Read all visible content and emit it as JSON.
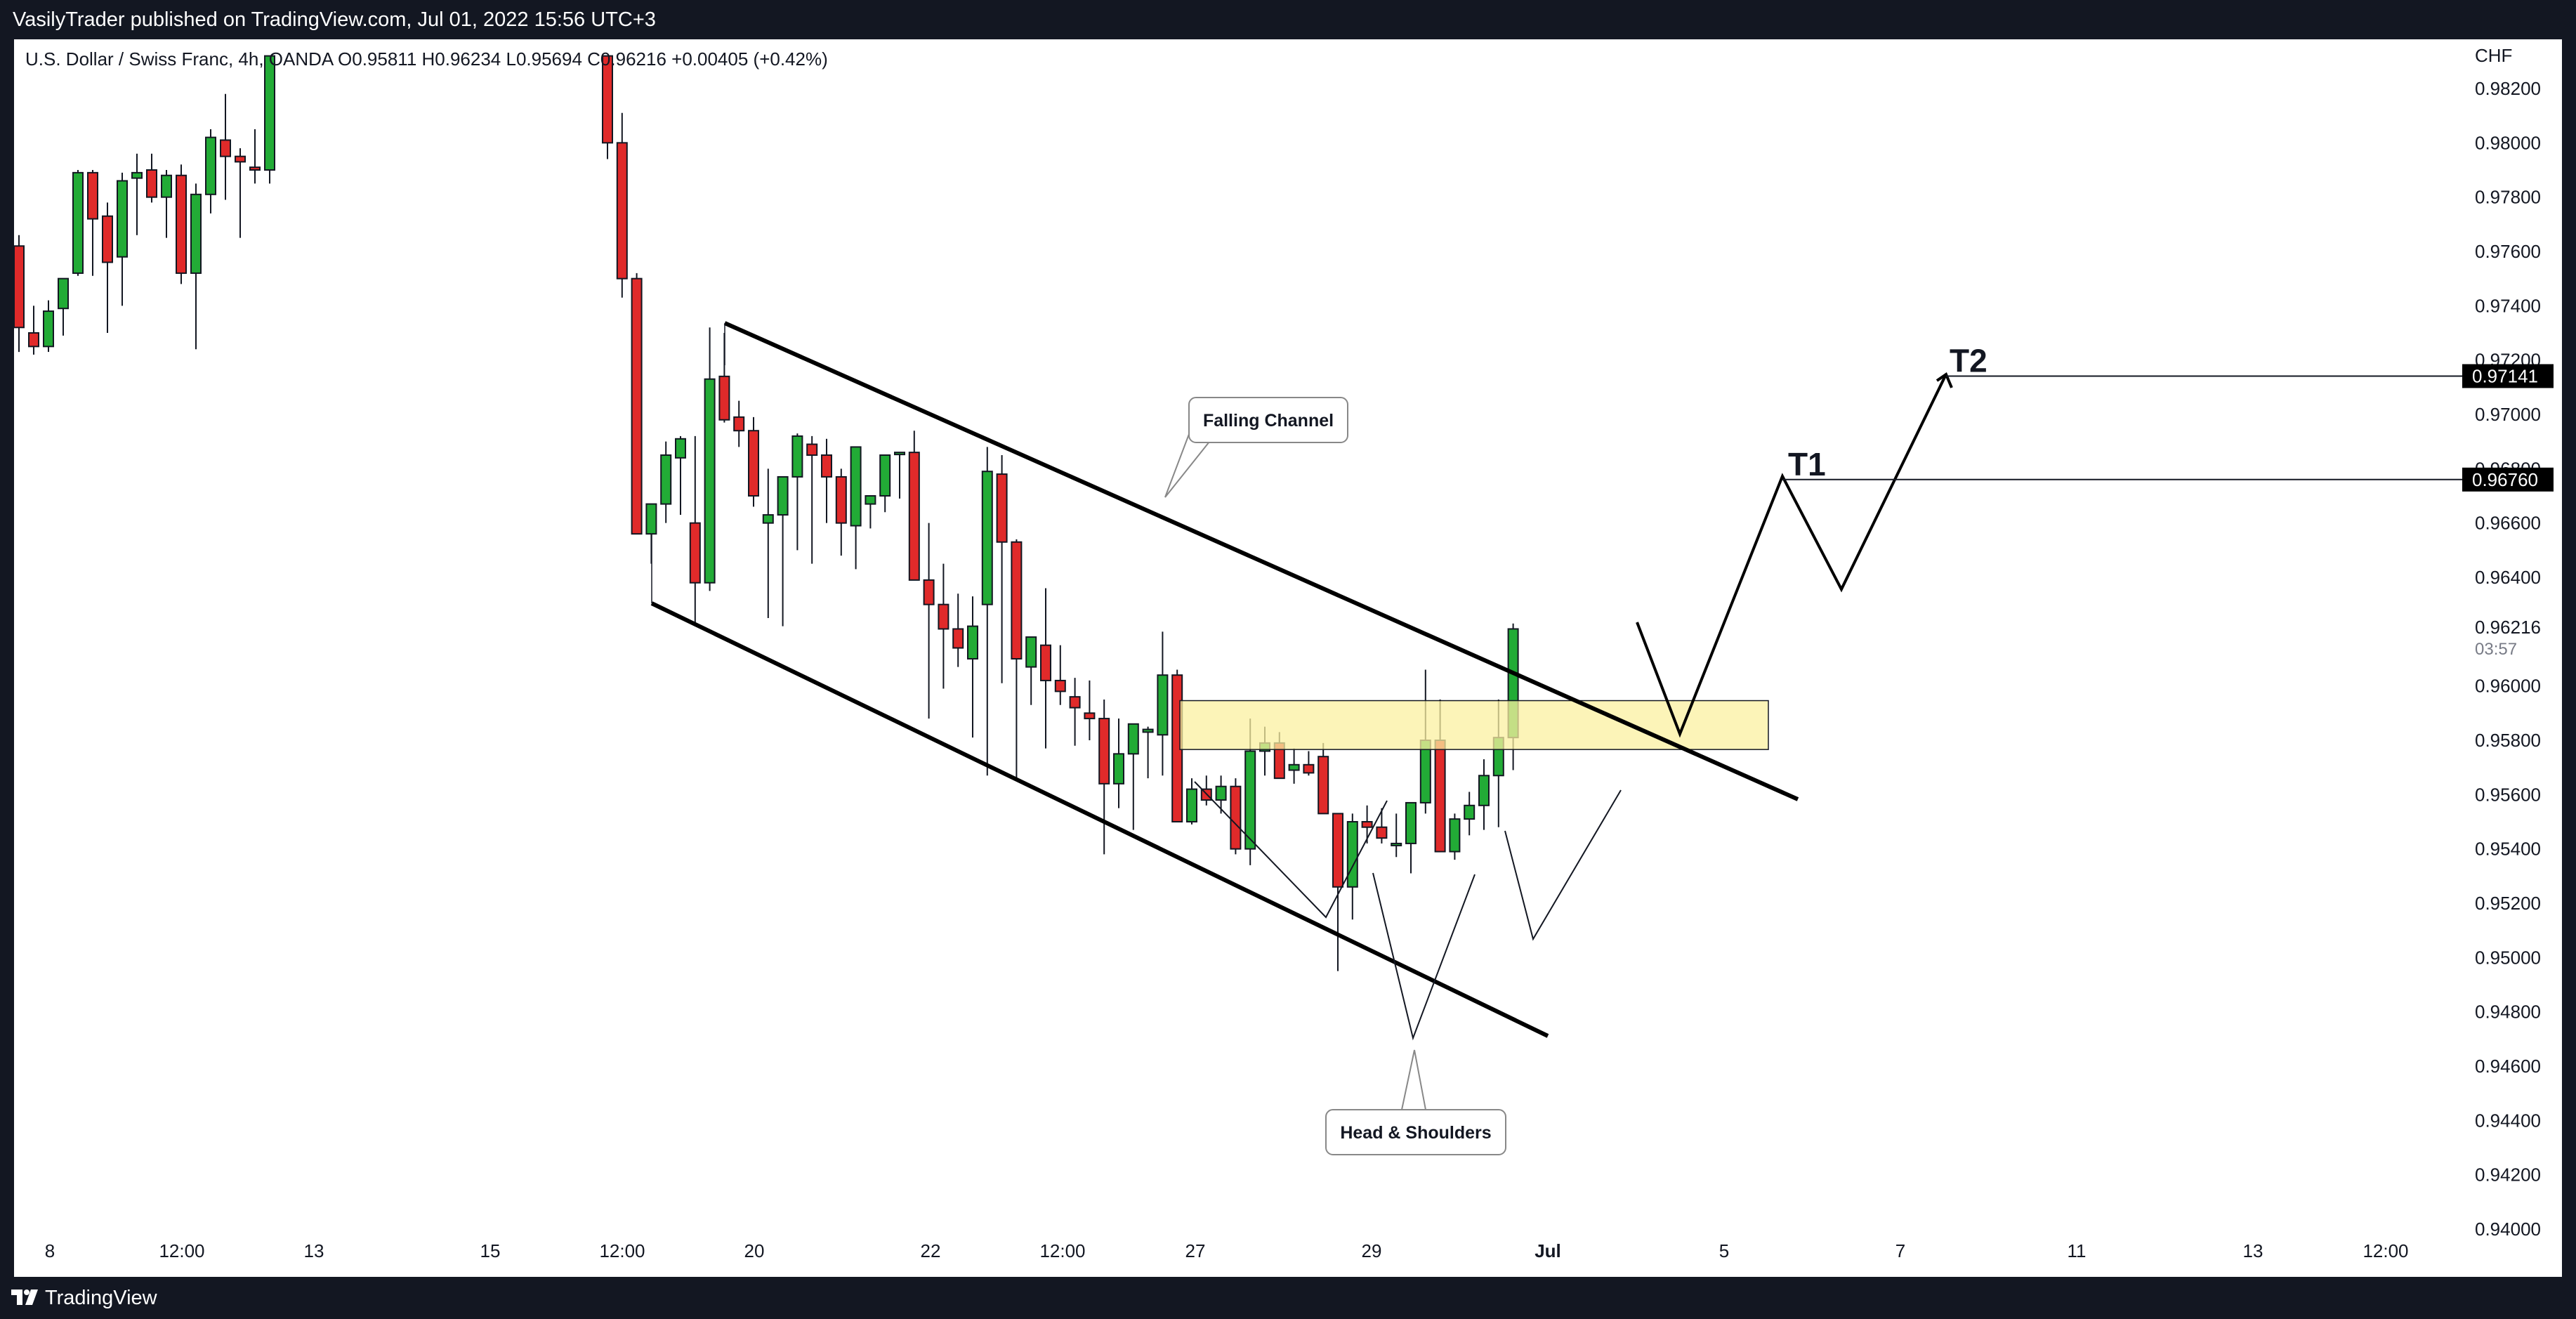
{
  "header": {
    "published_by": "VasilyTrader published on TradingView.com, Jul 01, 2022 15:56 UTC+3"
  },
  "footer": {
    "brand": "TradingView"
  },
  "colors": {
    "up": "#22ab36",
    "down": "#e02a2a",
    "zone_fill": "#fbf0a0",
    "background": "#ffffff",
    "chrome": "#131722"
  },
  "chart_data": {
    "type": "candlestick",
    "symbol_line": "U.S. Dollar / Swiss Franc, 4h, OANDA  O0.95811  H0.96234  L0.95694  C0.96216  +0.00405 (+0.42%)",
    "currency": "CHF",
    "x_ticks": [
      "8",
      "12:00",
      "13",
      "15",
      "12:00",
      "20",
      "22",
      "12:00",
      "27",
      "29",
      "Jul",
      "5",
      "7",
      "11",
      "13",
      "12:00"
    ],
    "y_ticks": [
      "0.98200",
      "0.98000",
      "0.97800",
      "0.97600",
      "0.97400",
      "0.97200",
      "0.97000",
      "0.96800",
      "0.96600",
      "0.96400",
      "0.96000",
      "0.95800",
      "0.95600",
      "0.95400",
      "0.95200",
      "0.95000",
      "0.94800",
      "0.94600",
      "0.94400",
      "0.94200",
      "0.94000"
    ],
    "ylim": [
      0.9398,
      0.9832
    ],
    "last_price": "0.96216",
    "countdown": "03:57",
    "candles_left": [
      [
        0.9762,
        0.9766,
        0.9723,
        0.9732
      ],
      [
        0.973,
        0.974,
        0.9722,
        0.9725
      ],
      [
        0.9725,
        0.9742,
        0.9723,
        0.9738
      ],
      [
        0.9739,
        0.975,
        0.9729,
        0.975
      ],
      [
        0.9752,
        0.979,
        0.9751,
        0.9789
      ],
      [
        0.9789,
        0.979,
        0.9751,
        0.9772
      ],
      [
        0.9773,
        0.9778,
        0.973,
        0.9756
      ],
      [
        0.9758,
        0.9789,
        0.974,
        0.9786
      ],
      [
        0.9787,
        0.9796,
        0.9766,
        0.9789
      ],
      [
        0.979,
        0.9796,
        0.9778,
        0.978
      ],
      [
        0.978,
        0.979,
        0.9765,
        0.9788
      ],
      [
        0.9788,
        0.9792,
        0.9748,
        0.9752
      ],
      [
        0.9752,
        0.9785,
        0.9724,
        0.9781
      ],
      [
        0.9781,
        0.9805,
        0.9774,
        0.9802
      ],
      [
        0.9801,
        0.9818,
        0.9779,
        0.9795
      ],
      [
        0.9795,
        0.9798,
        0.9765,
        0.9793
      ],
      [
        0.9791,
        0.9805,
        0.9785,
        0.979
      ],
      [
        0.979,
        0.9832,
        0.9785,
        0.9832
      ]
    ],
    "candles_right": [
      [
        0.9832,
        0.9832,
        0.9794,
        0.98
      ],
      [
        0.98,
        0.9811,
        0.9743,
        0.975
      ],
      [
        0.975,
        0.9752,
        0.9671,
        0.9656
      ],
      [
        0.9656,
        0.9666,
        0.9645,
        0.9667
      ],
      [
        0.9667,
        0.969,
        0.966,
        0.9685
      ],
      [
        0.9684,
        0.9692,
        0.9663,
        0.9691
      ],
      [
        0.966,
        0.9692,
        0.9622,
        0.9638
      ],
      [
        0.9638,
        0.9732,
        0.9635,
        0.9713
      ],
      [
        0.9714,
        0.973,
        0.9697,
        0.9698
      ],
      [
        0.9699,
        0.9705,
        0.9688,
        0.9694
      ],
      [
        0.9694,
        0.9699,
        0.9666,
        0.967
      ],
      [
        0.966,
        0.968,
        0.9625,
        0.9663
      ],
      [
        0.9663,
        0.9676,
        0.9622,
        0.9677
      ],
      [
        0.9677,
        0.9693,
        0.965,
        0.9692
      ],
      [
        0.9689,
        0.9692,
        0.9645,
        0.9685
      ],
      [
        0.9685,
        0.9691,
        0.966,
        0.9677
      ],
      [
        0.9677,
        0.968,
        0.9648,
        0.966
      ],
      [
        0.9659,
        0.9687,
        0.9643,
        0.9688
      ],
      [
        0.9667,
        0.967,
        0.9658,
        0.967
      ],
      [
        0.967,
        0.9681,
        0.9664,
        0.9685
      ],
      [
        0.9686,
        0.9686,
        0.9669,
        0.9686
      ],
      [
        0.9686,
        0.9694,
        0.9667,
        0.9639
      ],
      [
        0.9639,
        0.966,
        0.9588,
        0.963
      ],
      [
        0.963,
        0.9645,
        0.9599,
        0.9621
      ],
      [
        0.9621,
        0.9634,
        0.9607,
        0.9614
      ],
      [
        0.961,
        0.9633,
        0.9581,
        0.9622
      ],
      [
        0.963,
        0.9688,
        0.9567,
        0.9679
      ],
      [
        0.9678,
        0.9685,
        0.9601,
        0.9653
      ],
      [
        0.9653,
        0.9654,
        0.9566,
        0.961
      ],
      [
        0.9607,
        0.9616,
        0.9593,
        0.9618
      ],
      [
        0.9615,
        0.9636,
        0.9577,
        0.9602
      ],
      [
        0.9602,
        0.9615,
        0.9593,
        0.9598
      ],
      [
        0.9596,
        0.9603,
        0.9578,
        0.9592
      ],
      [
        0.959,
        0.9602,
        0.958,
        0.9588
      ],
      [
        0.9588,
        0.9595,
        0.9538,
        0.9564
      ],
      [
        0.9564,
        0.9588,
        0.9555,
        0.9575
      ],
      [
        0.9575,
        0.9586,
        0.9547,
        0.9586
      ],
      [
        0.9583,
        0.9585,
        0.9566,
        0.9584
      ],
      [
        0.9582,
        0.962,
        0.9567,
        0.9604
      ],
      [
        0.9604,
        0.9606,
        0.9581,
        0.955
      ],
      [
        0.955,
        0.9566,
        0.9549,
        0.9562
      ],
      [
        0.9562,
        0.9567,
        0.9556,
        0.9558
      ],
      [
        0.9558,
        0.9567,
        0.9553,
        0.9563
      ],
      [
        0.9563,
        0.9566,
        0.9538,
        0.954
      ],
      [
        0.954,
        0.9588,
        0.9534,
        0.9576
      ],
      [
        0.9576,
        0.9585,
        0.9567,
        0.9579
      ],
      [
        0.9579,
        0.9583,
        0.9566,
        0.9566
      ],
      [
        0.9569,
        0.9577,
        0.9564,
        0.9571
      ],
      [
        0.9571,
        0.9576,
        0.9567,
        0.9568
      ],
      [
        0.9574,
        0.9579,
        0.956,
        0.9553
      ],
      [
        0.9553,
        0.9553,
        0.9495,
        0.9526
      ],
      [
        0.9526,
        0.9553,
        0.9514,
        0.955
      ],
      [
        0.955,
        0.9556,
        0.9542,
        0.9548
      ],
      [
        0.9548,
        0.9555,
        0.9542,
        0.9544
      ],
      [
        0.9542,
        0.9553,
        0.9537,
        0.9542
      ],
      [
        0.9542,
        0.9556,
        0.9531,
        0.9557
      ],
      [
        0.9557,
        0.9606,
        0.9553,
        0.958
      ],
      [
        0.958,
        0.9595,
        0.954,
        0.9539
      ],
      [
        0.9539,
        0.9553,
        0.9536,
        0.9551
      ],
      [
        0.9551,
        0.9561,
        0.9545,
        0.9556
      ],
      [
        0.9556,
        0.9573,
        0.9547,
        0.9567
      ],
      [
        0.9567,
        0.9595,
        0.9548,
        0.9581
      ],
      [
        0.9581,
        0.9623,
        0.9569,
        0.9621
      ]
    ],
    "levels": [
      {
        "name": "T1",
        "value": 0.9676,
        "label": "0.96760"
      },
      {
        "name": "T2",
        "value": 0.97141,
        "label": "0.97141"
      }
    ],
    "zone": {
      "low": 0.95766,
      "high": 0.95946,
      "from_candle": 42,
      "to": "Jul 4"
    },
    "annotations": [
      "Falling Channel",
      "Head & Shoulders",
      "T1",
      "T2"
    ]
  }
}
